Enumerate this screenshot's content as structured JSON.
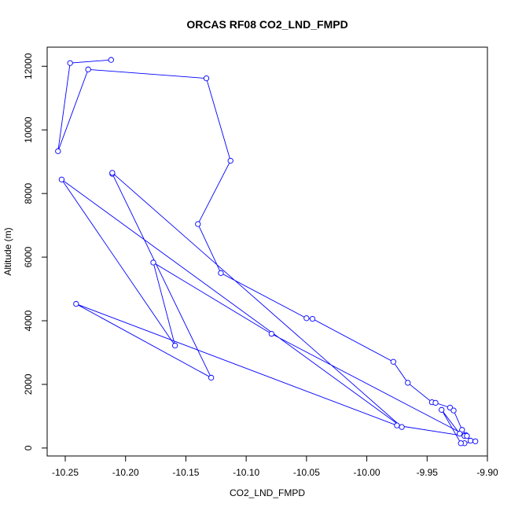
{
  "chart_data": {
    "type": "line",
    "title": "ORCAS RF08 CO2_LND_FMPD",
    "xlabel": "CO2_LND_FMPD",
    "ylabel": "Altitude (m)",
    "xlim": [
      -10.265,
      -9.9
    ],
    "ylim": [
      -250,
      12600
    ],
    "xticks": [
      -10.25,
      -10.2,
      -10.15,
      -10.1,
      -10.05,
      -10.0,
      -9.95,
      -9.9
    ],
    "xtick_labels": [
      "-10.25",
      "-10.20",
      "-10.15",
      "-10.10",
      "-10.05",
      "-10.00",
      "-9.95",
      "-9.90"
    ],
    "yticks": [
      0,
      2000,
      4000,
      6000,
      8000,
      10000,
      12000
    ],
    "ytick_labels": [
      "0",
      "2000",
      "4000",
      "6000",
      "8000",
      "10000",
      "12000"
    ],
    "grid": false,
    "series_color": "#0000ff",
    "markers": "open-circle",
    "x": [
      -10.212,
      -10.246,
      -10.256,
      -10.231,
      -10.133,
      -10.113,
      -10.14,
      -10.121,
      -10.05,
      -10.045,
      -9.978,
      -9.966,
      -9.946,
      -9.943,
      -9.931,
      -9.928,
      -9.921,
      -9.918,
      -9.914,
      -9.91,
      -9.919,
      -9.922,
      -9.938,
      -9.923,
      -9.919,
      -9.975,
      -10.241,
      -10.129,
      -10.211,
      -10.211,
      -9.971,
      -10.253,
      -10.159,
      -10.177,
      -10.079,
      -9.917
    ],
    "y": [
      12200,
      12100,
      9330,
      11900,
      11620,
      9030,
      7040,
      5500,
      4080,
      4060,
      2710,
      2050,
      1440,
      1420,
      1270,
      1180,
      570,
      410,
      230,
      210,
      150,
      150,
      1200,
      450,
      380,
      710,
      4530,
      2210,
      8620,
      8650,
      660,
      8440,
      3220,
      5830,
      3590,
      380
    ]
  }
}
